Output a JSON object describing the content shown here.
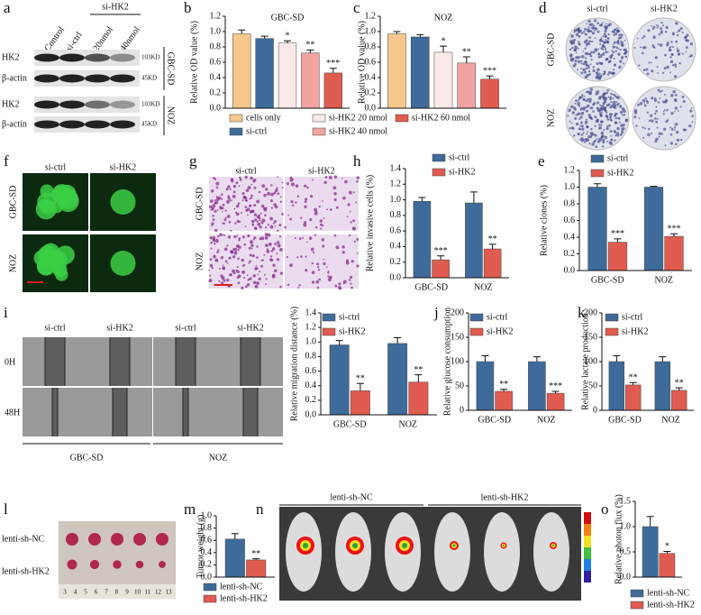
{
  "panel_labels": [
    "a",
    "b",
    "c",
    "d",
    "f",
    "g",
    "h",
    "e",
    "i",
    "j",
    "k",
    "l",
    "m",
    "n",
    "o"
  ],
  "images": {
    "a": {
      "columns": [
        "Control",
        "si-ctrl",
        "20nmol",
        "40nmol"
      ],
      "group": "si-HK2",
      "rows": [
        "HK2",
        "β-actin",
        "HK2",
        "β-actin"
      ],
      "sizes": [
        "103KD",
        "45KD",
        "103KD",
        "45KD"
      ],
      "cell_lines": [
        "GBC-SD",
        "NOZ"
      ]
    },
    "d": {
      "columns": [
        "si-ctrl",
        "si-HK2"
      ],
      "rows": [
        "GBC-SD",
        "NOZ"
      ]
    },
    "f": {
      "columns": [
        "si-ctrl",
        "si-HK2"
      ],
      "rows": [
        "GBC-SD",
        "NOZ"
      ]
    },
    "g": {
      "columns": [
        "si-ctrl",
        "si-HK2"
      ],
      "rows": [
        "GBC-SD",
        "NOZ"
      ]
    },
    "i": {
      "columns": [
        "si-ctrl",
        "si-HK2",
        "si-ctrl",
        "si-HK2"
      ],
      "rows": [
        "0H",
        "48H"
      ],
      "groups": [
        "GBC-SD",
        "NOZ"
      ]
    },
    "l": {
      "rows": [
        "lenti-sh-NC",
        "lenti-sh-HK2"
      ],
      "ruler": [
        3,
        4,
        5,
        6,
        7,
        8,
        9,
        10,
        11,
        12,
        13
      ]
    },
    "n": {
      "groups": [
        "lenti-sh-NC",
        "lenti-sh-HK2"
      ]
    }
  },
  "chart_data": [
    {
      "type": "bar",
      "title": "GBC-SD",
      "ylabel": "Relative OD value (%)",
      "ylim": [
        0,
        1.2
      ],
      "yticks": [
        {
          "value": 0,
          "label": "0.0"
        },
        {
          "value": 0.2,
          "label": "0.2"
        },
        {
          "value": 0.4,
          "label": "0.4"
        },
        {
          "value": 0.6,
          "label": "0.6"
        },
        {
          "value": 0.8,
          "label": "0.8"
        },
        {
          "value": 1,
          "label": "1.0"
        },
        {
          "value": 1.2,
          "label": "1.2"
        }
      ],
      "legend": "below",
      "series": [
        {
          "name": "cells only",
          "color": "#f6c88c",
          "values": [
            0.97
          ],
          "errors": [
            0.05
          ],
          "significance": [
            null
          ]
        },
        {
          "name": "si-ctrl",
          "color": "#3e6b9a",
          "values": [
            0.91
          ],
          "errors": [
            0.03
          ],
          "significance": [
            null
          ]
        },
        {
          "name": "si-HK2 20 nmol",
          "color": "#fbe8e8",
          "values": [
            0.85
          ],
          "errors": [
            0.03
          ],
          "significance": [
            "*"
          ]
        },
        {
          "name": "si-HK2 40 nmol",
          "color": "#f0a3a0",
          "values": [
            0.72
          ],
          "errors": [
            0.04
          ],
          "significance": [
            "**"
          ]
        },
        {
          "name": "si-HK2 60 nmol",
          "color": "#e05b50",
          "values": [
            0.46
          ],
          "errors": [
            0.06
          ],
          "significance": [
            "***"
          ]
        }
      ]
    },
    {
      "type": "bar",
      "title": "NOZ",
      "ylabel": "Relative OD value (%)",
      "ylim": [
        0,
        1.2
      ],
      "yticks": [
        {
          "value": 0,
          "label": "0.0"
        },
        {
          "value": 0.2,
          "label": "0.2"
        },
        {
          "value": 0.4,
          "label": "0.4"
        },
        {
          "value": 0.6,
          "label": "0.6"
        },
        {
          "value": 0.8,
          "label": "0.8"
        },
        {
          "value": 1,
          "label": "1.0"
        },
        {
          "value": 1.2,
          "label": "1.2"
        }
      ],
      "series": [
        {
          "color": "#f6c88c",
          "values": [
            0.97
          ],
          "errors": [
            0.03
          ],
          "significance": [
            null
          ]
        },
        {
          "color": "#3e6b9a",
          "values": [
            0.93
          ],
          "errors": [
            0.03
          ],
          "significance": [
            null
          ]
        },
        {
          "color": "#fbe8e8",
          "values": [
            0.73
          ],
          "errors": [
            0.08
          ],
          "significance": [
            "*"
          ]
        },
        {
          "color": "#f0a3a0",
          "values": [
            0.59
          ],
          "errors": [
            0.08
          ],
          "significance": [
            "**"
          ]
        },
        {
          "color": "#e05b50",
          "values": [
            0.38
          ],
          "errors": [
            0.04
          ],
          "significance": [
            "***"
          ]
        }
      ]
    },
    {
      "type": "bar",
      "ylabel": "Relative invasive cells (%)",
      "ylim": [
        0,
        1.4
      ],
      "categories": [
        "GBC-SD",
        "NOZ"
      ],
      "yticks": [
        {
          "value": 0,
          "label": "0.0"
        },
        {
          "value": 0.2,
          "label": "0.2"
        },
        {
          "value": 0.4,
          "label": "0.4"
        },
        {
          "value": 0.6,
          "label": "0.6"
        },
        {
          "value": 0.8,
          "label": "0.8"
        },
        {
          "value": 1,
          "label": "1.0"
        },
        {
          "value": 1.2,
          "label": "1.2"
        },
        {
          "value": 1.4,
          "label": "1.4"
        }
      ],
      "legend": "upper left",
      "series": [
        {
          "name": "si-ctrl",
          "color": "#3e6b9a",
          "values": [
            0.98,
            0.96
          ],
          "errors": [
            0.05,
            0.14
          ],
          "significance": [
            null,
            null
          ]
        },
        {
          "name": "si-HK2",
          "color": "#e05b50",
          "values": [
            0.23,
            0.37
          ],
          "errors": [
            0.05,
            0.06
          ],
          "significance": [
            "***",
            "**"
          ]
        }
      ]
    },
    {
      "type": "bar",
      "ylabel": "Relative clones (%)",
      "ylim": [
        0,
        1.2
      ],
      "categories": [
        "GBC-SD",
        "NOZ"
      ],
      "yticks": [
        {
          "value": 0,
          "label": "0.0"
        },
        {
          "value": 0.2,
          "label": "0.2"
        },
        {
          "value": 0.4,
          "label": "0.4"
        },
        {
          "value": 0.6,
          "label": "0.6"
        },
        {
          "value": 0.8,
          "label": "0.8"
        },
        {
          "value": 1,
          "label": "1.0"
        },
        {
          "value": 1.2,
          "label": "1.2"
        }
      ],
      "legend": "upper left",
      "series": [
        {
          "name": "si-ctrl",
          "color": "#3e6b9a",
          "values": [
            1.0,
            1.0
          ],
          "errors": [
            0.04,
            0.01
          ],
          "significance": [
            null,
            null
          ]
        },
        {
          "name": "si-HK2",
          "color": "#e05b50",
          "values": [
            0.34,
            0.41
          ],
          "errors": [
            0.04,
            0.03
          ],
          "significance": [
            "***",
            "***"
          ]
        }
      ]
    },
    {
      "type": "bar",
      "ylabel": "Relative migration distance (%)",
      "ylim": [
        0,
        1.4
      ],
      "categories": [
        "GBC-SD",
        "NOZ"
      ],
      "yticks": [
        {
          "value": 0,
          "label": "0.0"
        },
        {
          "value": 0.2,
          "label": "0.2"
        },
        {
          "value": 0.4,
          "label": "0.4"
        },
        {
          "value": 0.6,
          "label": "0.6"
        },
        {
          "value": 0.8,
          "label": "0.8"
        },
        {
          "value": 1,
          "label": "1.0"
        },
        {
          "value": 1.2,
          "label": "1.2"
        },
        {
          "value": 1.4,
          "label": "1.4"
        }
      ],
      "legend": "upper left",
      "series": [
        {
          "name": "si-ctrl",
          "color": "#3e6b9a",
          "values": [
            0.96,
            0.98
          ],
          "errors": [
            0.06,
            0.08
          ],
          "significance": [
            null,
            null
          ]
        },
        {
          "name": "si-HK2",
          "color": "#e05b50",
          "values": [
            0.33,
            0.45
          ],
          "errors": [
            0.1,
            0.1
          ],
          "significance": [
            "**",
            "**"
          ]
        }
      ]
    },
    {
      "type": "bar",
      "ylabel": "Relative glucose consumption",
      "ylim": [
        0,
        200
      ],
      "categories": [
        "GBC-SD",
        "NOZ"
      ],
      "yticks": [
        0,
        50,
        100,
        150,
        200
      ],
      "legend": "upper left",
      "series": [
        {
          "name": "si-ctrl",
          "color": "#3e6b9a",
          "values": [
            100,
            100
          ],
          "errors": [
            12,
            10
          ],
          "significance": [
            null,
            null
          ]
        },
        {
          "name": "si-HK2",
          "color": "#e05b50",
          "values": [
            39,
            35
          ],
          "errors": [
            4,
            4
          ],
          "significance": [
            "**",
            "***"
          ]
        }
      ]
    },
    {
      "type": "bar",
      "ylabel": "Relative lactate production",
      "ylim": [
        0,
        200
      ],
      "categories": [
        "GBC-SD",
        "NOZ"
      ],
      "yticks": [
        0,
        50,
        100,
        150,
        200
      ],
      "legend": "upper left",
      "series": [
        {
          "name": "si-ctrl",
          "color": "#3e6b9a",
          "values": [
            100,
            100
          ],
          "errors": [
            12,
            10
          ],
          "significance": [
            null,
            null
          ]
        },
        {
          "name": "si-HK2",
          "color": "#e05b50",
          "values": [
            52,
            41
          ],
          "errors": [
            5,
            5
          ],
          "significance": [
            "**",
            "**"
          ]
        }
      ]
    },
    {
      "type": "bar",
      "ylabel": "Tumor weight (g)",
      "ylim": [
        0,
        1.0
      ],
      "yticks": [
        {
          "value": 0,
          "label": "0.0"
        },
        {
          "value": 0.2,
          "label": "0.2"
        },
        {
          "value": 0.4,
          "label": "0.4"
        },
        {
          "value": 0.6,
          "label": "0.6"
        },
        {
          "value": 0.8,
          "label": "0.8"
        },
        {
          "value": 1,
          "label": "1.0"
        }
      ],
      "legend": "below",
      "series": [
        {
          "name": "lenti-sh-NC",
          "color": "#3e6b9a",
          "values": [
            0.62
          ],
          "errors": [
            0.09
          ],
          "significance": [
            null
          ]
        },
        {
          "name": "lenti-sh-HK2",
          "color": "#e05b50",
          "values": [
            0.28
          ],
          "errors": [
            0.02
          ],
          "significance": [
            "**"
          ]
        }
      ]
    },
    {
      "type": "bar",
      "ylabel": "Relative photon flux (%)",
      "ylim": [
        0,
        1.5
      ],
      "yticks": [
        {
          "value": 0,
          "label": "0.0"
        },
        {
          "value": 0.5,
          "label": "0.5"
        },
        {
          "value": 1,
          "label": "1.0"
        },
        {
          "value": 1.5,
          "label": "1.5"
        }
      ],
      "legend": "below",
      "series": [
        {
          "name": "lenti-sh-NC",
          "color": "#3e6b9a",
          "values": [
            1.0
          ],
          "errors": [
            0.2
          ],
          "significance": [
            null
          ]
        },
        {
          "name": "lenti-sh-HK2",
          "color": "#e05b50",
          "values": [
            0.47
          ],
          "errors": [
            0.04
          ],
          "significance": [
            "*"
          ]
        }
      ]
    }
  ]
}
